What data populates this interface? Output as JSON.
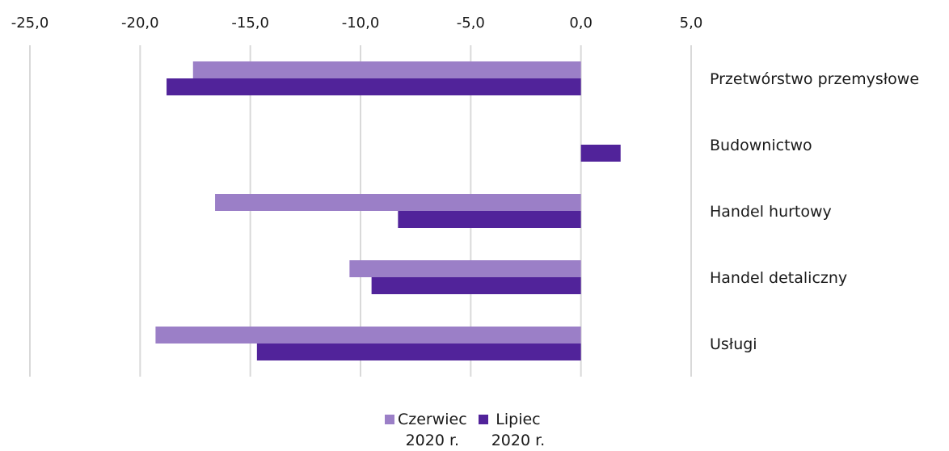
{
  "chart_data": {
    "type": "bar",
    "orientation": "horizontal",
    "categories": [
      "Przetwórstwo przemysłowe",
      "Budownictwo",
      "Handel hurtowy",
      "Handel detaliczny",
      "Usługi"
    ],
    "series": [
      {
        "name_line1": "Czerwiec",
        "name_line2": "2020 r.",
        "color": "#9b7fc7",
        "values": [
          -17.6,
          0.0,
          -16.6,
          -10.5,
          -19.3
        ]
      },
      {
        "name_line1": "Lipiec",
        "name_line2": "2020 r.",
        "color": "#51239a",
        "values": [
          -18.8,
          1.8,
          -8.3,
          -9.5,
          -14.7
        ]
      }
    ],
    "xlim": [
      -25,
      5
    ],
    "x_ticks": [
      "-25,0",
      "-20,0",
      "-15,0",
      "-10,0",
      "-5,0",
      "0,0",
      "5,0"
    ],
    "x_tick_values": [
      -25,
      -20,
      -15,
      -10,
      -5,
      0,
      5
    ],
    "x_axis_position": "top",
    "grid": true,
    "legend_position": "bottom"
  }
}
